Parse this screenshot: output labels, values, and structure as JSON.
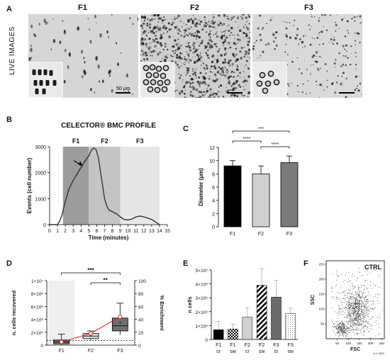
{
  "panels": {
    "A": "A",
    "B": "B",
    "C": "C",
    "D": "D",
    "E": "E",
    "F": "F"
  },
  "panel_a": {
    "row_label": "LIVE IMAGES",
    "titles": [
      "F1",
      "F2",
      "F3"
    ],
    "scale_bar_label": "50 µm"
  },
  "chart_data": [
    {
      "id": "B",
      "type": "line",
      "title": "CELECTOR® BMC PROFILE",
      "xlabel": "Time (minutes)",
      "ylabel": "Events (cell number)",
      "xlim": [
        0,
        15
      ],
      "ylim": [
        0,
        3000
      ],
      "xticks": [
        "0",
        "1",
        "2",
        "3",
        "4",
        "5",
        "6",
        "7",
        "8",
        "9",
        "10",
        "11",
        "12",
        "13",
        "14",
        "15"
      ],
      "yticks": [
        "0",
        "1000",
        "2000",
        "3000"
      ],
      "regions": [
        {
          "name": "F1",
          "start": 1.7,
          "end": 5.0,
          "color": "#9c9c9c"
        },
        {
          "name": "F2",
          "start": 5.0,
          "end": 9.0,
          "color": "#c4c4c4"
        },
        {
          "name": "F3",
          "start": 9.0,
          "end": 14.0,
          "color": "#e6e6e6"
        }
      ],
      "x": [
        0,
        1.0,
        1.3,
        1.6,
        2.0,
        2.5,
        3.0,
        3.5,
        4.0,
        4.5,
        5.0,
        5.3,
        5.6,
        5.9,
        6.2,
        6.5,
        6.8,
        7.0,
        7.3,
        7.6,
        8.0,
        8.5,
        9.0,
        9.5,
        10.0,
        10.5,
        11.0,
        11.5,
        12.0,
        12.5,
        13.0,
        13.5,
        14.0
      ],
      "y": [
        0,
        0,
        150,
        400,
        900,
        1400,
        1700,
        1950,
        2200,
        2450,
        2650,
        2850,
        2950,
        2900,
        2600,
        2000,
        1400,
        1000,
        700,
        550,
        500,
        420,
        300,
        200,
        180,
        220,
        300,
        330,
        300,
        250,
        200,
        100,
        0
      ],
      "arrow_at": {
        "x": 4.2,
        "y": 2300
      }
    },
    {
      "id": "C",
      "type": "bar",
      "ylabel": "Diameter (µm)",
      "ylim": [
        0,
        12
      ],
      "yticks": [
        "0",
        "2",
        "4",
        "6",
        "8",
        "10",
        "12"
      ],
      "categories": [
        "F1",
        "F2",
        "F3"
      ],
      "values": [
        9.2,
        8.0,
        9.7
      ],
      "errors": [
        0.8,
        1.2,
        1.0
      ],
      "colors": [
        "#000000",
        "#d0d0d0",
        "#7a7a7a"
      ],
      "significance": [
        {
          "from": 0,
          "to": 2,
          "label": "***"
        },
        {
          "from": 0,
          "to": 1,
          "label": "****"
        },
        {
          "from": 1,
          "to": 2,
          "label": "****"
        }
      ]
    },
    {
      "id": "D",
      "type": "box",
      "ylabel": "n. cells recovered",
      "y2label": "% Enrichment",
      "ylim": [
        0,
        10000000
      ],
      "y2lim": [
        0,
        100
      ],
      "yticks": [
        "0",
        "2×10⁶",
        "4×10⁶",
        "6×10⁶",
        "8×10⁶",
        "1×10⁷"
      ],
      "y2ticks": [
        "0",
        "20",
        "40",
        "60",
        "80",
        "100"
      ],
      "categories": [
        "F1",
        "F2",
        "F3"
      ],
      "boxes": [
        {
          "min": 0,
          "q1": 200000,
          "median": 500000,
          "q3": 800000,
          "max": 1700000,
          "mean": 550000
        },
        {
          "min": 800000,
          "q1": 1000000,
          "median": 1400000,
          "q3": 1800000,
          "max": 2200000,
          "mean": 1500000
        },
        {
          "min": 1600000,
          "q1": 2200000,
          "median": 3000000,
          "q3": 4200000,
          "max": 6500000,
          "mean": 3500000
        }
      ],
      "box_colors": [
        "#707070",
        "#d8d8d8",
        "#707070"
      ],
      "enrichment": [
        5,
        18,
        44
      ],
      "enrichment_color": "#e0202a",
      "reference_line": 0.7,
      "significance": [
        {
          "from": 0,
          "to": 2,
          "label": "***"
        },
        {
          "from": 1,
          "to": 2,
          "label": "**"
        }
      ]
    },
    {
      "id": "E",
      "type": "bar",
      "ylabel": "n cells",
      "ylim": [
        0,
        5000000
      ],
      "yticks": [
        "0",
        "1×10⁶",
        "2×10⁶",
        "3×10⁶",
        "4×10⁶",
        "5×10⁶"
      ],
      "categories": [
        "F1\ncr",
        "F1\nsw",
        "F2\ncr",
        "F2\nsw",
        "F3\ncr",
        "F3\nsw"
      ],
      "values": [
        700000,
        750000,
        1600000,
        3900000,
        3050000,
        1850000
      ],
      "errors": [
        600000,
        350000,
        700000,
        1200000,
        1200000,
        400000
      ],
      "fills": [
        "solid-black",
        "checker",
        "solid-light",
        "stripes",
        "solid-dark",
        "dots"
      ]
    },
    {
      "id": "F",
      "type": "scatter",
      "title": "CTRL",
      "xlabel": "FSC",
      "ylabel": "SSC",
      "xticks": [
        "50",
        "100",
        "150",
        "200",
        "250"
      ],
      "yticks": [
        "50",
        "100",
        "150",
        "200",
        "250"
      ],
      "xlim": [
        0,
        262
      ],
      "ylim": [
        0,
        262
      ],
      "corner_label": "(x 1,000)"
    }
  ]
}
